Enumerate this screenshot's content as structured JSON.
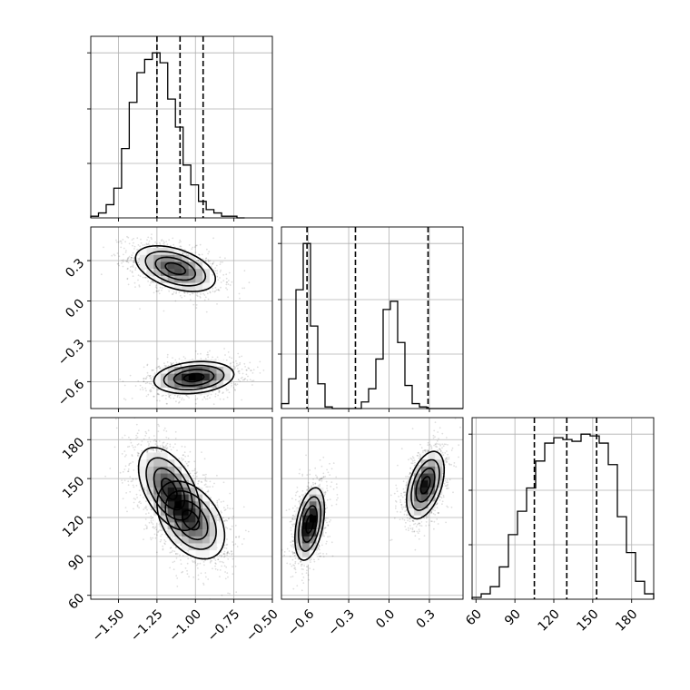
{
  "chart_data": {
    "type": "corner",
    "grid": true,
    "parameters": [
      {
        "range": [
          -1.68,
          -0.5
        ],
        "ticks": [
          -1.5,
          -1.25,
          -1.0,
          -0.75,
          -0.5
        ],
        "tick_labels": [
          "−1.50",
          "−1.25",
          "−1.00",
          "−0.75",
          "−0.50"
        ]
      },
      {
        "range": [
          -0.8,
          0.55
        ],
        "ticks": [
          -0.6,
          -0.3,
          0.0,
          0.3
        ],
        "tick_labels": [
          "−0.6",
          "−0.3",
          "0.0",
          "0.3"
        ]
      },
      {
        "range": [
          57,
          197
        ],
        "ticks": [
          60,
          90,
          120,
          150,
          180
        ],
        "tick_labels": [
          "60",
          "90",
          "120",
          "150",
          "180"
        ]
      }
    ],
    "histograms": [
      {
        "bin_start": -1.68,
        "bin_width": 0.05,
        "counts": [
          1,
          3,
          8,
          18,
          42,
          70,
          88,
          96,
          100,
          94,
          72,
          55,
          32,
          20,
          10,
          5,
          3,
          1,
          1,
          0
        ],
        "quantiles": [
          -1.25,
          -1.1,
          -0.95
        ]
      },
      {
        "bin_start": -0.8,
        "bin_width": 0.054,
        "counts": [
          3,
          18,
          72,
          100,
          50,
          15,
          1,
          0,
          0,
          0,
          0,
          4,
          12,
          30,
          60,
          65,
          40,
          14,
          3,
          1,
          0,
          0,
          0,
          0,
          0
        ],
        "quantiles": [
          -0.61,
          -0.25,
          0.29
        ]
      },
      {
        "bin_start": 57,
        "bin_width": 7,
        "counts": [
          1,
          3,
          7,
          18,
          36,
          49,
          62,
          77,
          87,
          90,
          89,
          88,
          92,
          91,
          87,
          75,
          46,
          26,
          10,
          3
        ],
        "quantiles": [
          105,
          130,
          153
        ]
      }
    ],
    "joint": [
      {
        "x_param": 0,
        "y_param": 1,
        "clusters": [
          {
            "center": [
              -1.13,
              0.24
            ],
            "sigma": [
              0.13,
              0.085
            ],
            "corr": -0.45,
            "weight": 0.5
          },
          {
            "center": [
              -1.01,
              -0.57
            ],
            "sigma": [
              0.13,
              0.06
            ],
            "corr": 0.2,
            "weight": 0.5
          }
        ]
      },
      {
        "x_param": 0,
        "y_param": 2,
        "clusters": [
          {
            "center": [
              -1.17,
              142
            ],
            "sigma": [
              0.1,
              16
            ],
            "corr": -0.5,
            "weight": 0.5
          },
          {
            "center": [
              -1.03,
              118
            ],
            "sigma": [
              0.11,
              15
            ],
            "corr": -0.4,
            "weight": 0.5
          }
        ]
      },
      {
        "x_param": 1,
        "y_param": 2,
        "clusters": [
          {
            "center": [
              -0.59,
              115
            ],
            "sigma": [
              0.055,
              14
            ],
            "corr": 0.4,
            "weight": 0.5
          },
          {
            "center": [
              0.27,
              145
            ],
            "sigma": [
              0.07,
              13
            ],
            "corr": 0.45,
            "weight": 0.5
          }
        ]
      }
    ]
  }
}
